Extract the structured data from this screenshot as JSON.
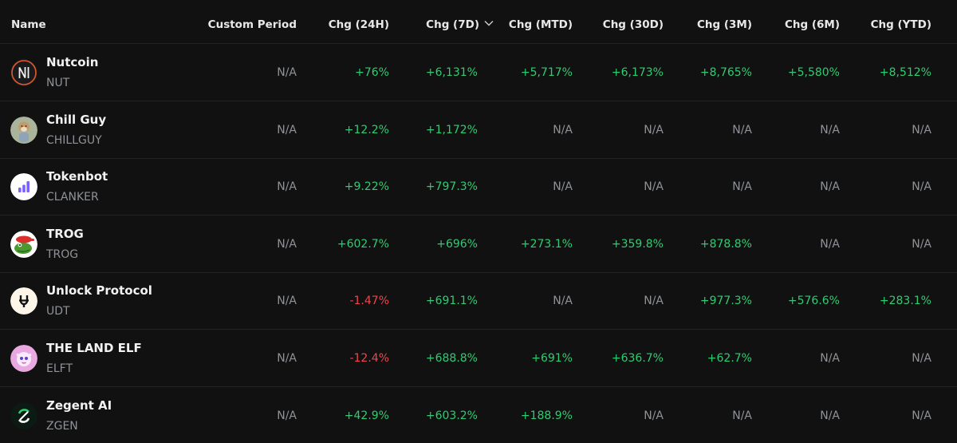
{
  "columns": {
    "name": "Name",
    "custom": "Custom Period",
    "h24": "Chg (24H)",
    "d7": "Chg (7D)",
    "mtd": "Chg (MTD)",
    "d30": "Chg (30D)",
    "m3": "Chg (3M)",
    "m6": "Chg (6M)",
    "ytd": "Chg (YTD)"
  },
  "sort": {
    "column": "Chg (7D)",
    "direction": "desc"
  },
  "colors": {
    "positive": "#2fcc71",
    "negative": "#f0444c",
    "neutral": "#8f9296",
    "background": "#111112"
  },
  "rows": [
    {
      "name": "Nutcoin",
      "symbol": "NUT",
      "icon": "nutcoin-icon",
      "values": [
        "N/A",
        "+76%",
        "+6,131%",
        "+5,717%",
        "+6,173%",
        "+8,765%",
        "+5,580%",
        "+8,512%"
      ]
    },
    {
      "name": "Chill Guy",
      "symbol": "CHILLGUY",
      "icon": "chill-guy-icon",
      "values": [
        "N/A",
        "+12.2%",
        "+1,172%",
        "N/A",
        "N/A",
        "N/A",
        "N/A",
        "N/A"
      ]
    },
    {
      "name": "Tokenbot",
      "symbol": "CLANKER",
      "icon": "tokenbot-icon",
      "values": [
        "N/A",
        "+9.22%",
        "+797.3%",
        "N/A",
        "N/A",
        "N/A",
        "N/A",
        "N/A"
      ]
    },
    {
      "name": "TROG",
      "symbol": "TROG",
      "icon": "trog-frog-icon",
      "values": [
        "N/A",
        "+602.7%",
        "+696%",
        "+273.1%",
        "+359.8%",
        "+878.8%",
        "N/A",
        "N/A"
      ]
    },
    {
      "name": "Unlock Protocol",
      "symbol": "UDT",
      "icon": "unlock-protocol-icon",
      "values": [
        "N/A",
        "-1.47%",
        "+691.1%",
        "N/A",
        "N/A",
        "+977.3%",
        "+576.6%",
        "+283.1%"
      ]
    },
    {
      "name": "THE LAND ELF",
      "symbol": "ELFT",
      "icon": "land-elf-icon",
      "values": [
        "N/A",
        "-12.4%",
        "+688.8%",
        "+691%",
        "+636.7%",
        "+62.7%",
        "N/A",
        "N/A"
      ]
    },
    {
      "name": "Zegent AI",
      "symbol": "ZGEN",
      "icon": "zegent-ai-icon",
      "values": [
        "N/A",
        "+42.9%",
        "+603.2%",
        "+188.9%",
        "N/A",
        "N/A",
        "N/A",
        "N/A"
      ]
    }
  ]
}
